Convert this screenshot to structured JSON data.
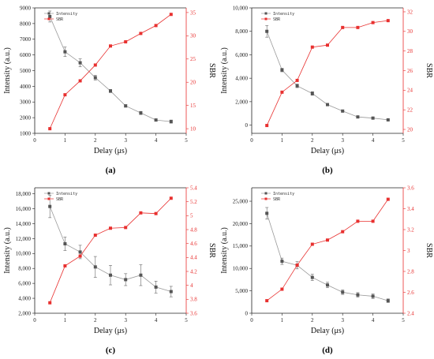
{
  "chart_data": [
    {
      "type": "line",
      "panel_label": "(a)",
      "xlabel": "Delay (μs)",
      "ylabel_left": "Intensity (a.u.)",
      "ylabel_right": "SBR",
      "xlim": [
        0,
        5
      ],
      "x_ticks": [
        "0",
        "1",
        "2",
        "3",
        "4",
        "5"
      ],
      "ylim_left": [
        1000,
        9000
      ],
      "y_ticks_left": [
        "1000",
        "2000",
        "3000",
        "4000",
        "5000",
        "6000",
        "7000",
        "8000",
        "9000"
      ],
      "ylim_right": [
        9,
        36
      ],
      "y_ticks_right": [
        "10",
        "15",
        "20",
        "25",
        "30",
        "35"
      ],
      "legend_position": "top-left",
      "x": [
        0.5,
        1.0,
        1.5,
        2.0,
        2.5,
        3.0,
        3.5,
        4.0,
        4.5
      ],
      "series": [
        {
          "name": "Intensity",
          "axis": "left",
          "color": "#555555",
          "values": [
            8450,
            6200,
            5500,
            4550,
            3700,
            2750,
            2300,
            1850,
            1750
          ],
          "errors": [
            350,
            300,
            250,
            150,
            100,
            80,
            100,
            80,
            100
          ]
        },
        {
          "name": "SBR",
          "axis": "right",
          "color": "#e8302f",
          "values": [
            10.0,
            17.3,
            20.3,
            23.7,
            27.8,
            28.7,
            30.5,
            32.2,
            34.6
          ]
        }
      ]
    },
    {
      "type": "line",
      "panel_label": "(b)",
      "xlabel": "Delay (μs)",
      "ylabel_left": "Intensity (a.u.)",
      "ylabel_right": "SBR",
      "xlim": [
        0,
        5
      ],
      "x_ticks": [
        "0",
        "1",
        "2",
        "3",
        "4",
        "5"
      ],
      "ylim_left": [
        -700,
        10000
      ],
      "y_ticks_left": [
        "0",
        "2,000",
        "4,000",
        "6,000",
        "8,000",
        "10,000"
      ],
      "ylim_right": [
        19.6,
        32.4
      ],
      "y_ticks_right": [
        "20",
        "22",
        "24",
        "26",
        "28",
        "30",
        "32"
      ],
      "legend_position": "top-left",
      "x": [
        0.5,
        1.0,
        1.5,
        2.0,
        2.5,
        3.0,
        3.5,
        4.0,
        4.5
      ],
      "series": [
        {
          "name": "Intensity",
          "axis": "left",
          "color": "#555555",
          "values": [
            8000,
            4700,
            3350,
            2700,
            1750,
            1200,
            700,
            600,
            450
          ],
          "errors": [
            500,
            150,
            150,
            150,
            100,
            80,
            80,
            60,
            60
          ]
        },
        {
          "name": "SBR",
          "axis": "right",
          "color": "#e8302f",
          "values": [
            20.4,
            23.8,
            25.0,
            28.4,
            28.6,
            30.4,
            30.4,
            30.9,
            31.1
          ]
        }
      ]
    },
    {
      "type": "line",
      "panel_label": "(c)",
      "xlabel": "Delay (μs)",
      "ylabel_left": "Intensity (a.u.)",
      "ylabel_right": "SBR",
      "xlim": [
        0,
        5
      ],
      "x_ticks": [
        "0",
        "1",
        "2",
        "3",
        "4",
        "5"
      ],
      "ylim_left": [
        2000,
        18800
      ],
      "y_ticks_left": [
        "2,000",
        "4,000",
        "6,000",
        "8,000",
        "10,000",
        "12,000",
        "14,000",
        "16,000",
        "18,000"
      ],
      "ylim_right": [
        3.6,
        5.4
      ],
      "y_ticks_right": [
        "3.6",
        "3.8",
        "4",
        "4.2",
        "4.4",
        "4.6",
        "4.8",
        "5",
        "5.2",
        "5.4"
      ],
      "legend_position": "top-left",
      "x": [
        0.5,
        1.0,
        1.5,
        2.0,
        2.5,
        3.0,
        3.5,
        4.0,
        4.5
      ],
      "series": [
        {
          "name": "Intensity",
          "axis": "left",
          "color": "#555555",
          "values": [
            16300,
            11300,
            10200,
            8200,
            7100,
            6500,
            7100,
            5500,
            4900
          ],
          "errors": [
            1500,
            900,
            900,
            1400,
            1300,
            800,
            1400,
            800,
            700
          ]
        },
        {
          "name": "SBR",
          "axis": "right",
          "color": "#e8302f",
          "values": [
            3.75,
            4.28,
            4.42,
            4.72,
            4.82,
            4.83,
            5.04,
            5.03,
            5.25
          ]
        }
      ]
    },
    {
      "type": "line",
      "panel_label": "(d)",
      "xlabel": "Delay (μs)",
      "ylabel_left": "Intensity (a.u.)",
      "ylabel_right": "SBR",
      "xlim": [
        0,
        5
      ],
      "x_ticks": [
        "0",
        "1",
        "2",
        "3",
        "4",
        "5"
      ],
      "ylim_left": [
        0,
        28000
      ],
      "y_ticks_left": [
        "0",
        "5,000",
        "10,000",
        "15,000",
        "20,000",
        "25,000"
      ],
      "ylim_right": [
        2.4,
        3.6
      ],
      "y_ticks_right": [
        "2.4",
        "2.6",
        "2.8",
        "3",
        "3.2",
        "3.4",
        "3.6"
      ],
      "legend_position": "top-left",
      "x": [
        0.5,
        1.0,
        1.5,
        2.0,
        2.5,
        3.0,
        3.5,
        4.0,
        4.5
      ],
      "series": [
        {
          "name": "Intensity",
          "axis": "left",
          "color": "#555555",
          "values": [
            22300,
            11600,
            10700,
            8000,
            6300,
            4700,
            4100,
            3800,
            2800
          ],
          "errors": [
            1300,
            700,
            800,
            700,
            600,
            500,
            500,
            500,
            400
          ]
        },
        {
          "name": "SBR",
          "axis": "right",
          "color": "#e8302f",
          "values": [
            2.52,
            2.63,
            2.86,
            3.06,
            3.1,
            3.18,
            3.28,
            3.28,
            3.49
          ]
        }
      ]
    }
  ]
}
